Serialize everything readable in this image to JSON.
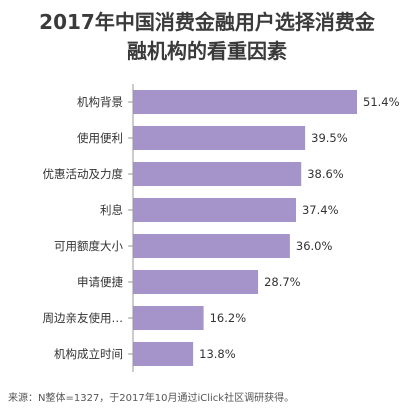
{
  "title_lines": [
    "2017年中国消费金融用户选择消费金",
    "融机构的看重因素"
  ],
  "source": "来源：N整体=1327，于2017年10月通过iClick社区调研获得。",
  "colors": {
    "bar": "#a594c9",
    "axis": "#999999",
    "label": "#333333"
  },
  "chart_data": {
    "type": "bar",
    "orientation": "horizontal",
    "title": "2017年中国消费金融用户选择消费金融机构的看重因素",
    "categories": [
      "机构背景",
      "使用便利",
      "优惠活动及力度",
      "利息",
      "可用额度大小",
      "申请便捷",
      "周边亲友使用…",
      "机构成立时间"
    ],
    "values": [
      51.4,
      39.5,
      38.6,
      37.4,
      36.0,
      28.7,
      16.2,
      13.8
    ],
    "value_labels": [
      "51.4%",
      "39.5%",
      "38.6%",
      "37.4%",
      "36.0%",
      "28.7%",
      "16.2%",
      "13.8%"
    ],
    "xlim": [
      0,
      51.4
    ],
    "grid": false,
    "legend": "none"
  }
}
